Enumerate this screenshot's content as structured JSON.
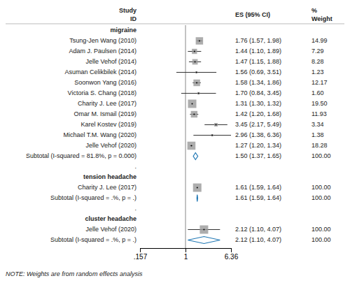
{
  "chart_data": {
    "type": "forest",
    "log": "x",
    "xlim": [
      0.157,
      6.36
    ],
    "xticks": [
      {
        "value": 0.157,
        "label": ".157"
      },
      1,
      {
        "value": 6.36,
        "label": "6.36"
      }
    ],
    "null_value": 1.0,
    "headers": {
      "study": [
        "Study",
        "ID"
      ],
      "es": [
        "ES (95% CI)"
      ],
      "weight": [
        "%",
        "Weight"
      ]
    },
    "sections": [
      {
        "name": "migraine",
        "studies": [
          {
            "name": "Tsung-Jen Wang (2010)",
            "es": 1.76,
            "lo": 1.57,
            "hi": 1.98,
            "weight": 14.99,
            "es_label": "1.76 (1.57, 1.98)",
            "weight_label": "14.99"
          },
          {
            "name": "Adam J. Paulsen (2014)",
            "es": 1.44,
            "lo": 1.1,
            "hi": 1.89,
            "weight": 7.29,
            "es_label": "1.44 (1.10, 1.89)",
            "weight_label": "7.29"
          },
          {
            "name": "Jelle Vehof (2014)",
            "es": 1.47,
            "lo": 1.15,
            "hi": 1.88,
            "weight": 8.28,
            "es_label": "1.47 (1.15, 1.88)",
            "weight_label": "8.28"
          },
          {
            "name": "Asuman Celikbilek (2014)",
            "es": 1.56,
            "lo": 0.69,
            "hi": 3.51,
            "weight": 1.23,
            "es_label": "1.56 (0.69, 3.51)",
            "weight_label": "1.23"
          },
          {
            "name": "Soonwon Yang (2016)",
            "es": 1.58,
            "lo": 1.34,
            "hi": 1.86,
            "weight": 12.17,
            "es_label": "1.58 (1.34, 1.86)",
            "weight_label": "12.17"
          },
          {
            "name": "Victoria S. Chang (2018)",
            "es": 1.7,
            "lo": 0.84,
            "hi": 3.45,
            "weight": 1.6,
            "es_label": "1.70 (0.84, 3.45)",
            "weight_label": "1.60"
          },
          {
            "name": "Charity J. Lee (2017)",
            "es": 1.31,
            "lo": 1.3,
            "hi": 1.32,
            "weight": 19.5,
            "es_label": "1.31 (1.30, 1.32)",
            "weight_label": "19.50"
          },
          {
            "name": "Omar M. Ismail (2019)",
            "es": 1.42,
            "lo": 1.2,
            "hi": 1.68,
            "weight": 11.93,
            "es_label": "1.42 (1.20, 1.68)",
            "weight_label": "11.93"
          },
          {
            "name": "Karel Kostev (2019)",
            "es": 3.45,
            "lo": 2.17,
            "hi": 5.49,
            "weight": 3.34,
            "es_label": "3.45 (2.17, 5.49)",
            "weight_label": "3.34"
          },
          {
            "name": "Michael T.M. Wang (2020)",
            "es": 2.96,
            "lo": 1.38,
            "hi": 6.36,
            "weight": 1.38,
            "es_label": "2.96 (1.38, 6.36)",
            "weight_label": "1.38"
          },
          {
            "name": "Jelle Vehof (2020)",
            "es": 1.27,
            "lo": 1.2,
            "hi": 1.34,
            "weight": 18.28,
            "es_label": "1.27 (1.20, 1.34)",
            "weight_label": "18.28"
          }
        ],
        "subtotal": {
          "label": "Subtotal (I-squared = 81.8%, p = 0.000)",
          "es": 1.5,
          "lo": 1.37,
          "hi": 1.65,
          "es_label": "1.50 (1.37, 1.65)",
          "weight_label": "100.00"
        }
      },
      {
        "name": "tension headache",
        "studies": [
          {
            "name": "Charity J. Lee (2017)",
            "es": 1.61,
            "lo": 1.59,
            "hi": 1.64,
            "weight": 100.0,
            "es_label": "1.61 (1.59, 1.64)",
            "weight_label": "100.00"
          }
        ],
        "subtotal": {
          "label": "Subtotal (I-squared = .%, p = .)",
          "es": 1.61,
          "lo": 1.59,
          "hi": 1.64,
          "es_label": "1.61 (1.59, 1.64)",
          "weight_label": "100.00"
        }
      },
      {
        "name": "cluster headache",
        "studies": [
          {
            "name": "Jelle Vehof (2020)",
            "es": 2.12,
            "lo": 1.1,
            "hi": 4.07,
            "weight": 100.0,
            "es_label": "2.12 (1.10, 4.07)",
            "weight_label": "100.00"
          }
        ],
        "subtotal": {
          "label": "Subtotal (I-squared = .%, p = .)",
          "es": 2.12,
          "lo": 1.1,
          "hi": 4.07,
          "es_label": "2.12 (1.10, 4.07)",
          "weight_label": "100.00"
        }
      }
    ],
    "separator": ".",
    "note": "NOTE: Weights are from random effects analysis"
  }
}
